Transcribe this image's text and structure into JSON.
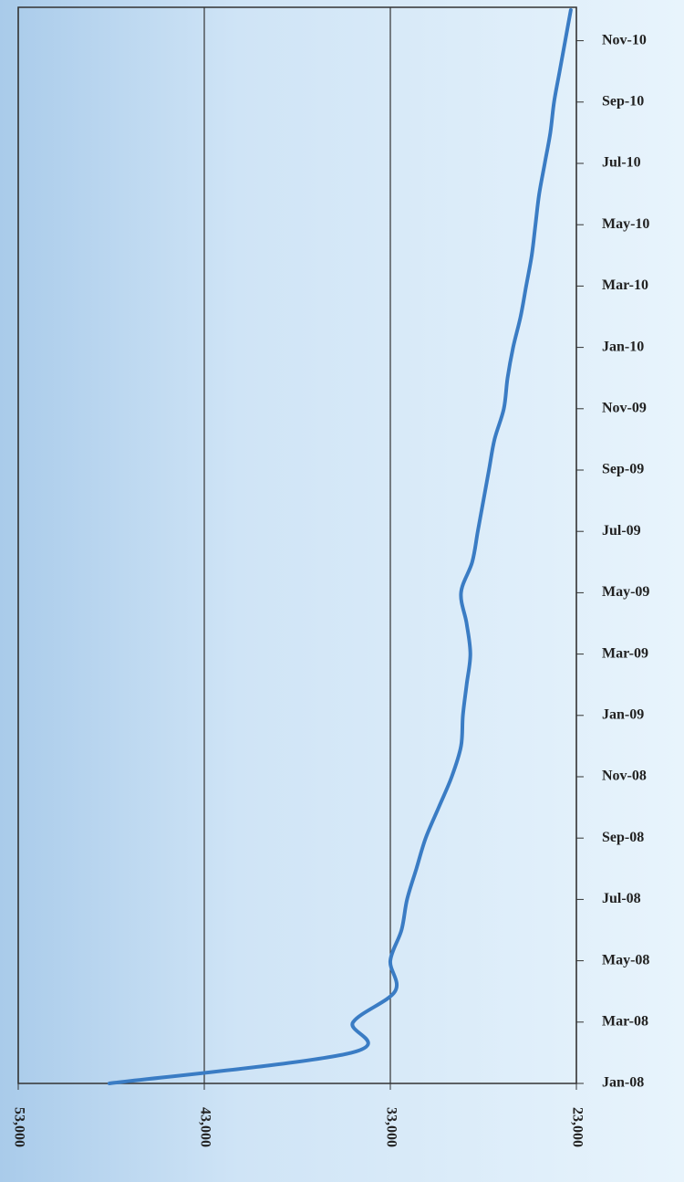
{
  "chart_data": {
    "type": "line",
    "orientation": "horizontal",
    "categories": [
      "Jan-08",
      null,
      "Mar-08",
      null,
      "May-08",
      null,
      "Jul-08",
      null,
      "Sep-08",
      null,
      "Nov-08",
      null,
      "Jan-09",
      null,
      "Mar-09",
      null,
      "May-09",
      null,
      "Jul-09",
      null,
      "Sep-09",
      null,
      "Nov-09",
      null,
      "Jan-10",
      null,
      "Mar-10",
      null,
      "May-10",
      null,
      "Jul-10",
      null,
      "Sep-10",
      null,
      "Nov-10",
      null
    ],
    "values": [
      48100,
      35100,
      35000,
      32750,
      33000,
      32400,
      32100,
      31600,
      31100,
      30400,
      29700,
      29200,
      29100,
      28900,
      28700,
      28900,
      29200,
      28600,
      28300,
      28000,
      27700,
      27400,
      26900,
      26700,
      26400,
      26000,
      25700,
      25400,
      25200,
      25000,
      24700,
      24400,
      24200,
      23900,
      23600,
      23300
    ],
    "color": "#3a7cc4",
    "xlim": [
      53000,
      23000
    ],
    "xticks": [
      {
        "value": 53000,
        "label": "53,000"
      },
      {
        "value": 43000,
        "label": "43,000"
      },
      {
        "value": 33000,
        "label": "33,000"
      },
      {
        "value": 23000,
        "label": "23,000"
      }
    ],
    "grid": true
  }
}
